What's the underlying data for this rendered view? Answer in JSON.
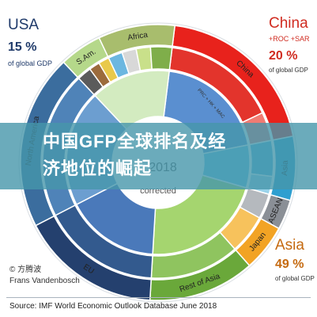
{
  "chart_data": {
    "type": "sunburst",
    "center": {
      "year": "2018",
      "note": "corrected"
    },
    "outer_ring": [
      {
        "name": "China",
        "value": 20,
        "color": "#e8221c"
      },
      {
        "name": "Asia",
        "value": 7.5,
        "color": "#2f9fd0"
      },
      {
        "name": "ASEAN",
        "value": 3.5,
        "color": "#8a8f96"
      },
      {
        "name": "Japan",
        "value": 5.5,
        "color": "#f2a324"
      },
      {
        "name": "Rest of Asia",
        "value": 12.5,
        "color": "#6aa83a"
      },
      {
        "name": "EU",
        "value": 16.5,
        "color": "#24406e"
      },
      {
        "name": "North America",
        "value": 20.5,
        "color": "#3b6d9e"
      },
      {
        "name": "S.Am.",
        "value": 5,
        "color": "#b5d88a"
      },
      {
        "name": "Africa",
        "value": 9,
        "color": "#a8bd6d"
      }
    ],
    "middle_ring": [
      {
        "value": 16,
        "color": "#e3342c"
      },
      {
        "value": 4,
        "color": "#f07b73"
      },
      {
        "value": 5,
        "color": "#58b5db"
      },
      {
        "value": 2.5,
        "color": "#9ad3ea"
      },
      {
        "value": 3.5,
        "color": "#b5b9be"
      },
      {
        "value": 5.5,
        "color": "#f7c25c"
      },
      {
        "value": 12.5,
        "color": "#8fc45f"
      },
      {
        "value": 16.5,
        "color": "#335a8e"
      },
      {
        "value": 20.5,
        "color": "#4f83b8"
      },
      {
        "value": 2,
        "color": "#5b5b5b"
      },
      {
        "value": 1.5,
        "color": "#9c6b3c"
      },
      {
        "value": 1.5,
        "color": "#e9c94b"
      },
      {
        "value": 2,
        "color": "#6cb7e0"
      },
      {
        "value": 2,
        "color": "#d8d8d8"
      },
      {
        "value": 2,
        "color": "#c9e08a"
      },
      {
        "value": 3,
        "color": "#7fae4a"
      }
    ],
    "inner_ring": [
      {
        "value": 20,
        "color": "#5a8fd0"
      },
      {
        "value": 7.5,
        "color": "#63c1e5"
      },
      {
        "value": 21.5,
        "color": "#a5d56f"
      },
      {
        "value": 16.5,
        "color": "#4a79ba"
      },
      {
        "value": 20.5,
        "color": "#6c9ed0"
      },
      {
        "value": 14,
        "color": "#d3ebc0"
      }
    ],
    "inner_label": "PRC + HK + MAC"
  },
  "callouts": {
    "usa": {
      "name": "USA",
      "pct": "15 %",
      "sub": "of global GDP"
    },
    "china": {
      "name": "China",
      "sub": "+ROC +SAR",
      "pct": "20 %",
      "small": "of global GDP"
    },
    "asia": {
      "name": "Asia",
      "pct": "49 %",
      "small": "of global GDP"
    }
  },
  "banner": {
    "line1": "中国GFP全球排名及经",
    "line2": "济地位的崛起"
  },
  "credit": {
    "line1": "© 方腾波",
    "line2": "Frans Vandenbosch"
  },
  "source": "Source: IMF World Economic Outlook Database June 2018"
}
